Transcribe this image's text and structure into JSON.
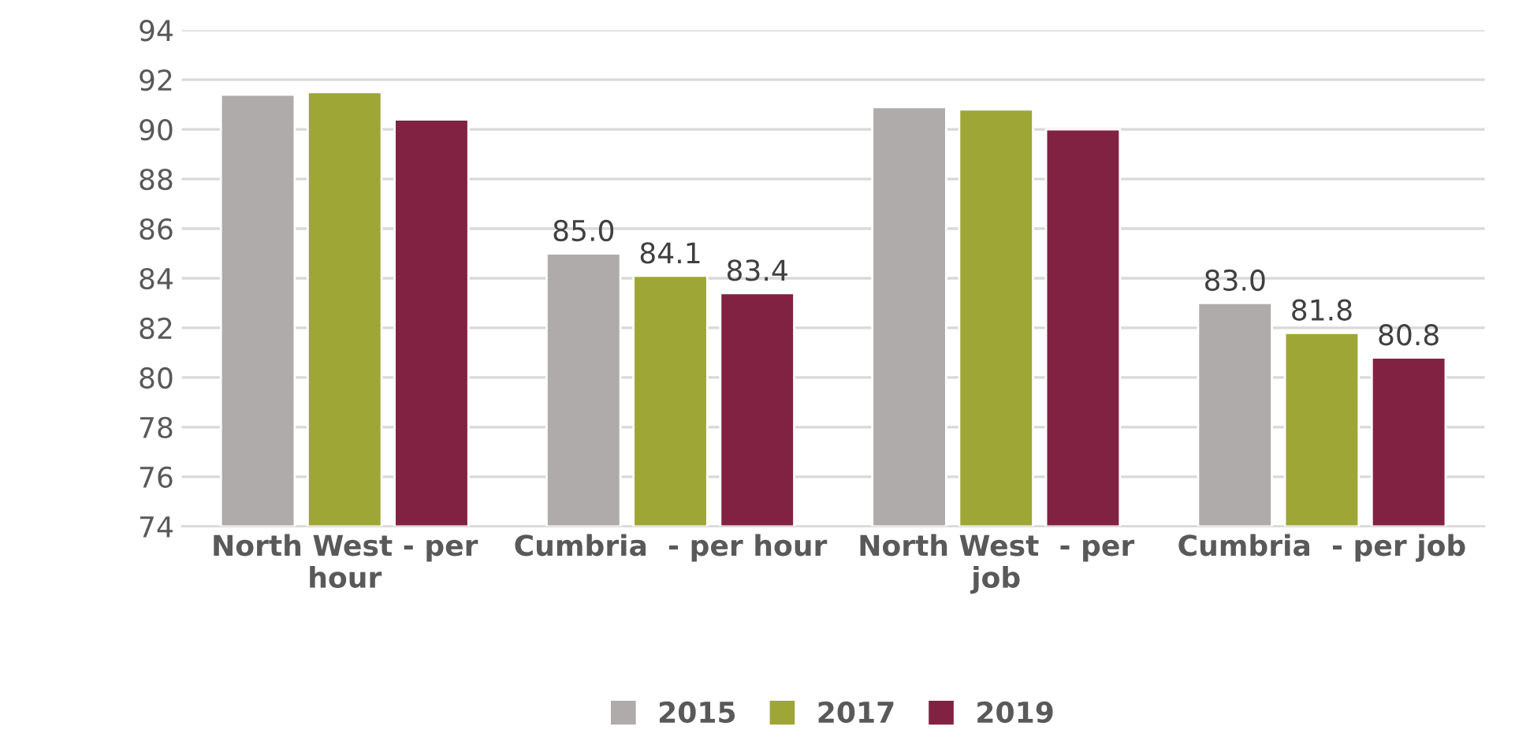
{
  "chart_data": {
    "type": "bar",
    "categories": [
      "North West - per hour",
      "Cumbria  - per hour",
      "North West  - per job",
      "Cumbria  - per job"
    ],
    "series": [
      {
        "name": "2015",
        "color": "#afabab",
        "values": [
          91.4,
          85.0,
          90.9,
          83.0
        ],
        "value_labels": [
          null,
          "85.0",
          null,
          "83.0"
        ]
      },
      {
        "name": "2017",
        "color": "#9ea636",
        "values": [
          91.5,
          84.1,
          90.8,
          81.8
        ],
        "value_labels": [
          null,
          "84.1",
          null,
          "81.8"
        ]
      },
      {
        "name": "2019",
        "color": "#822243",
        "values": [
          90.4,
          83.4,
          90.0,
          80.8
        ],
        "value_labels": [
          null,
          "83.4",
          null,
          "80.8"
        ]
      }
    ],
    "ylim": [
      74,
      94
    ],
    "yticks": [
      74,
      76,
      78,
      80,
      82,
      84,
      86,
      88,
      90,
      92,
      94
    ],
    "grid": "y",
    "legend": "bottom"
  }
}
